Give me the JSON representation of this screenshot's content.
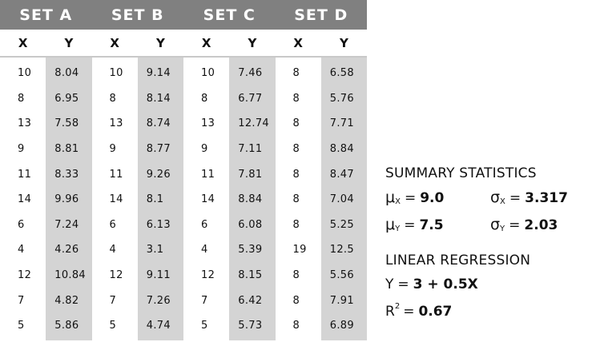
{
  "sets": [
    {
      "name": "SET A",
      "x_label": "X",
      "y_label": "Y",
      "x": [
        "10",
        "8",
        "13",
        "9",
        "11",
        "14",
        "6",
        "4",
        "12",
        "7",
        "5"
      ],
      "y": [
        "8.04",
        "6.95",
        "7.58",
        "8.81",
        "8.33",
        "9.96",
        "7.24",
        "4.26",
        "10.84",
        "4.82",
        "5.86"
      ]
    },
    {
      "name": "SET B",
      "x_label": "X",
      "y_label": "Y",
      "x": [
        "10",
        "8",
        "13",
        "9",
        "11",
        "14",
        "6",
        "4",
        "12",
        "7",
        "5"
      ],
      "y": [
        "9.14",
        "8.14",
        "8.74",
        "8.77",
        "9.26",
        "8.1",
        "6.13",
        "3.1",
        "9.11",
        "7.26",
        "4.74"
      ]
    },
    {
      "name": "SET C",
      "x_label": "X",
      "y_label": "Y",
      "x": [
        "10",
        "8",
        "13",
        "9",
        "11",
        "14",
        "6",
        "4",
        "12",
        "7",
        "5"
      ],
      "y": [
        "7.46",
        "6.77",
        "12.74",
        "7.11",
        "7.81",
        "8.84",
        "6.08",
        "5.39",
        "8.15",
        "6.42",
        "5.73"
      ]
    },
    {
      "name": "SET D",
      "x_label": "X",
      "y_label": "Y",
      "x": [
        "8",
        "8",
        "8",
        "8",
        "8",
        "8",
        "8",
        "19",
        "8",
        "8",
        "8"
      ],
      "y": [
        "6.58",
        "5.76",
        "7.71",
        "8.84",
        "8.47",
        "7.04",
        "5.25",
        "12.5",
        "5.56",
        "7.91",
        "6.89"
      ]
    }
  ],
  "summary": {
    "heading": "SUMMARY STATISTICS",
    "mean_x": {
      "symbol": "μ",
      "sub": "X",
      "value": "9.0"
    },
    "sd_x": {
      "symbol": "σ",
      "sub": "X",
      "value": "3.317"
    },
    "mean_y": {
      "symbol": "μ",
      "sub": "Y",
      "value": "7.5"
    },
    "sd_y": {
      "symbol": "σ",
      "sub": "Y",
      "value": "2.03"
    }
  },
  "regression": {
    "heading": "LINEAR REGRESSION",
    "equation_lhs": "Y",
    "equation_rhs": "3 + 0.5X",
    "r2_symbol": "R",
    "r2_exponent": "2",
    "r2_value": "0.67"
  },
  "colors": {
    "header_bg": "#808080",
    "y_column_bg": "#d4d4d4",
    "divider": "#c9c9c9"
  }
}
